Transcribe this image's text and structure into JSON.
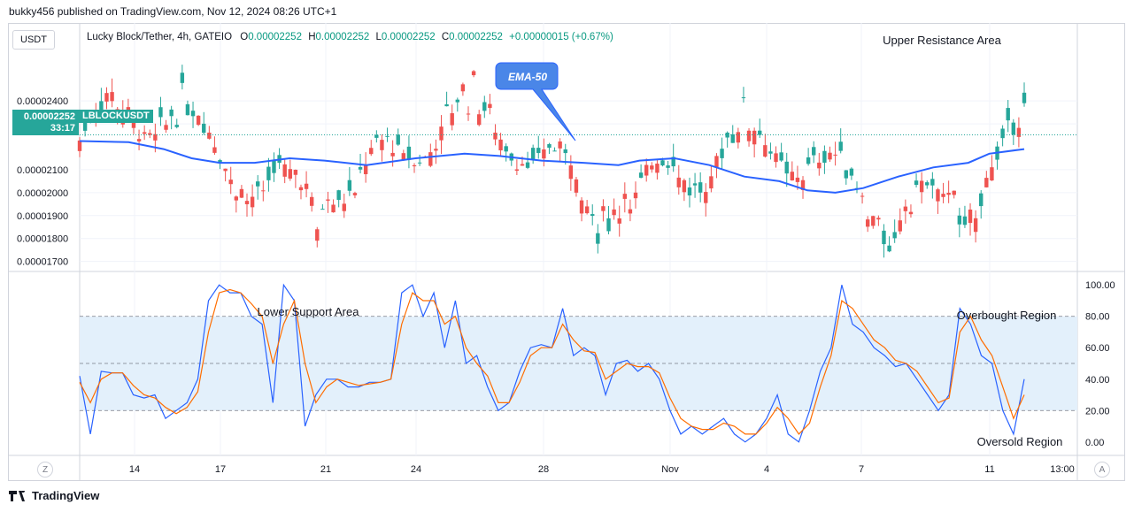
{
  "header": {
    "text": "bukky456 published on TradingView.com, Nov 12, 2024 08:26 UTC+1"
  },
  "symbol_box": "USDT",
  "legend": {
    "title": "Lucky Block/Tether, 4h, GATEIO",
    "o_label": "O",
    "o": "0.00002252",
    "h_label": "H",
    "h": "0.00002252",
    "l_label": "L",
    "l": "0.00002252",
    "c_label": "C",
    "c": "0.00002252",
    "change": "+0.00000015 (+0.67%)"
  },
  "price_tag": {
    "price": "0.00002252",
    "countdown": "33:17",
    "ticker": "LBLOCKUSDT"
  },
  "annotations": {
    "upper_resistance": "Upper Resistance Area",
    "ema_callout": "EMA-50",
    "lower_support": "Lower Support Area",
    "overbought": "Overbought Region",
    "oversold": "Oversold Region"
  },
  "buttons": {
    "z": "Z",
    "a": "A"
  },
  "footer": {
    "brand": "TradingView"
  },
  "colors": {
    "up": "#26a69a",
    "down": "#ef5350",
    "ema": "#2962ff",
    "k": "#2962ff",
    "d": "#ff6d00",
    "band": "#e3f0fb"
  },
  "chart_data": [
    {
      "type": "candlestick",
      "title": "Lucky Block/Tether, 4h, GATEIO",
      "ylim": [
        1.66e-05,
        2.74e-05
      ],
      "y_ticks": [
        "0.00002400",
        "0.00002300",
        "0.00002100",
        "0.00002000",
        "0.00001900",
        "0.00001800",
        "0.00001700"
      ],
      "x_ticks": [
        "14",
        "17",
        "21",
        "24",
        "28",
        "Nov",
        "4",
        "7",
        "11",
        "13:00"
      ],
      "current_price": 2.252e-05,
      "ema50": [
        [
          0,
          2.225e-05
        ],
        [
          0.07,
          2.22e-05
        ],
        [
          0.12,
          2.19e-05
        ],
        [
          0.16,
          2.15e-05
        ],
        [
          0.2,
          2.13e-05
        ],
        [
          0.25,
          2.13e-05
        ],
        [
          0.3,
          2.15e-05
        ],
        [
          0.35,
          2.14e-05
        ],
        [
          0.41,
          2.12e-05
        ],
        [
          0.48,
          2.15e-05
        ],
        [
          0.55,
          2.17e-05
        ],
        [
          0.6,
          2.16e-05
        ],
        [
          0.66,
          2.14e-05
        ],
        [
          0.72,
          2.13e-05
        ],
        [
          0.77,
          2.12e-05
        ],
        [
          0.8,
          2.14e-05
        ],
        [
          0.85,
          2.15e-05
        ],
        [
          0.9,
          2.12e-05
        ],
        [
          0.95,
          2.07e-05
        ],
        [
          1.0,
          2.05e-05
        ],
        [
          1.04,
          2.01e-05
        ],
        [
          1.08,
          2e-05
        ],
        [
          1.12,
          2.02e-05
        ],
        [
          1.17,
          2.07e-05
        ],
        [
          1.22,
          2.11e-05
        ],
        [
          1.27,
          2.13e-05
        ],
        [
          1.3,
          2.17e-05
        ],
        [
          1.35,
          2.19e-05
        ]
      ],
      "candles_sample": "approx. 4h OHLC series Oct 12 - Nov 12 2024"
    },
    {
      "type": "line",
      "title": "Stochastic RSI",
      "ylim": [
        -8,
        108
      ],
      "y_ticks": [
        "100.00",
        "80.00",
        "60.00",
        "40.00",
        "20.00",
        "0.00"
      ],
      "bands": [
        20,
        50,
        80
      ],
      "series": [
        {
          "key": "k",
          "values": [
            42,
            5,
            45,
            44,
            44,
            30,
            28,
            30,
            15,
            20,
            25,
            40,
            90,
            100,
            95,
            95,
            80,
            75,
            25,
            100,
            90,
            10,
            30,
            40,
            40,
            35,
            35,
            38,
            38,
            40,
            95,
            100,
            80,
            95,
            60,
            90,
            50,
            55,
            35,
            20,
            25,
            45,
            60,
            62,
            60,
            85,
            55,
            60,
            55,
            30,
            50,
            52,
            45,
            50,
            40,
            20,
            5,
            10,
            5,
            10,
            15,
            5,
            0,
            5,
            15,
            30,
            5,
            0,
            20,
            45,
            60,
            100,
            75,
            70,
            60,
            55,
            48,
            50,
            40,
            30,
            20,
            30,
            85,
            75,
            55,
            50,
            20,
            5,
            40
          ]
        },
        {
          "key": "d",
          "values": [
            38,
            25,
            40,
            44,
            44,
            36,
            30,
            28,
            22,
            18,
            22,
            32,
            70,
            95,
            97,
            95,
            88,
            80,
            50,
            75,
            90,
            50,
            25,
            35,
            40,
            38,
            36,
            37,
            38,
            40,
            75,
            95,
            90,
            90,
            75,
            80,
            60,
            50,
            42,
            25,
            25,
            38,
            55,
            60,
            60,
            75,
            65,
            58,
            57,
            40,
            45,
            50,
            48,
            48,
            44,
            28,
            15,
            10,
            8,
            8,
            12,
            10,
            5,
            5,
            12,
            22,
            15,
            5,
            12,
            35,
            55,
            90,
            85,
            75,
            65,
            60,
            52,
            50,
            45,
            35,
            25,
            28,
            70,
            80,
            65,
            55,
            35,
            15,
            30
          ]
        }
      ]
    }
  ]
}
